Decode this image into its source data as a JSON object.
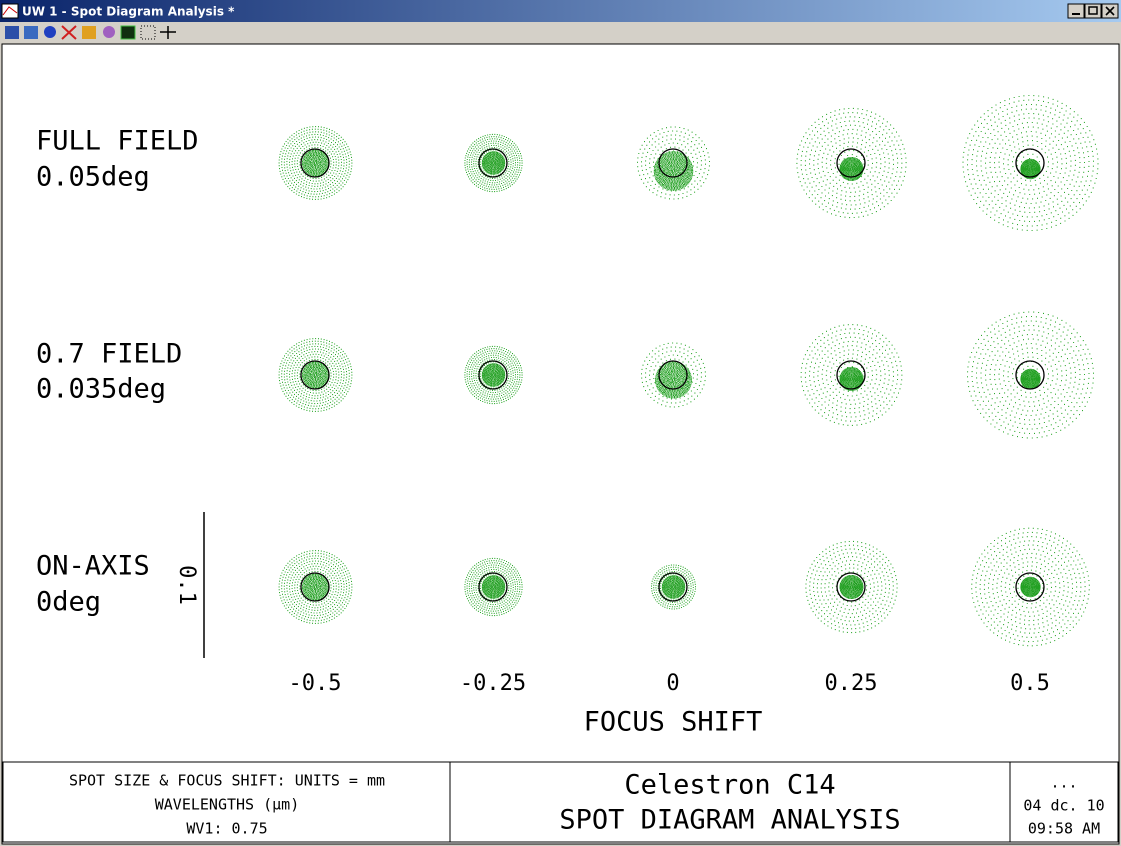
{
  "window": {
    "title": "UW 1 - Spot Diagram Analysis *"
  },
  "plot": {
    "rows": [
      {
        "field": "FULL FIELD",
        "angle": "0.05deg"
      },
      {
        "field": "0.7 FIELD",
        "angle": "0.035deg"
      },
      {
        "field": "ON-AXIS",
        "angle": "0deg"
      }
    ],
    "columns": [
      "-0.5",
      "-0.25",
      "0",
      "0.25",
      "0.5"
    ],
    "axis_label": "FOCUS SHIFT",
    "scale_bar": "0.1"
  },
  "footer": {
    "left": [
      "SPOT SIZE & FOCUS SHIFT: UNITS = mm",
      "WAVELENGTHS (µm)",
      "WV1: 0.75"
    ],
    "center": [
      "Celestron C14",
      "SPOT DIAGRAM ANALYSIS"
    ],
    "right": [
      "...",
      "04 dc. 10",
      "09:58 AM"
    ]
  }
}
